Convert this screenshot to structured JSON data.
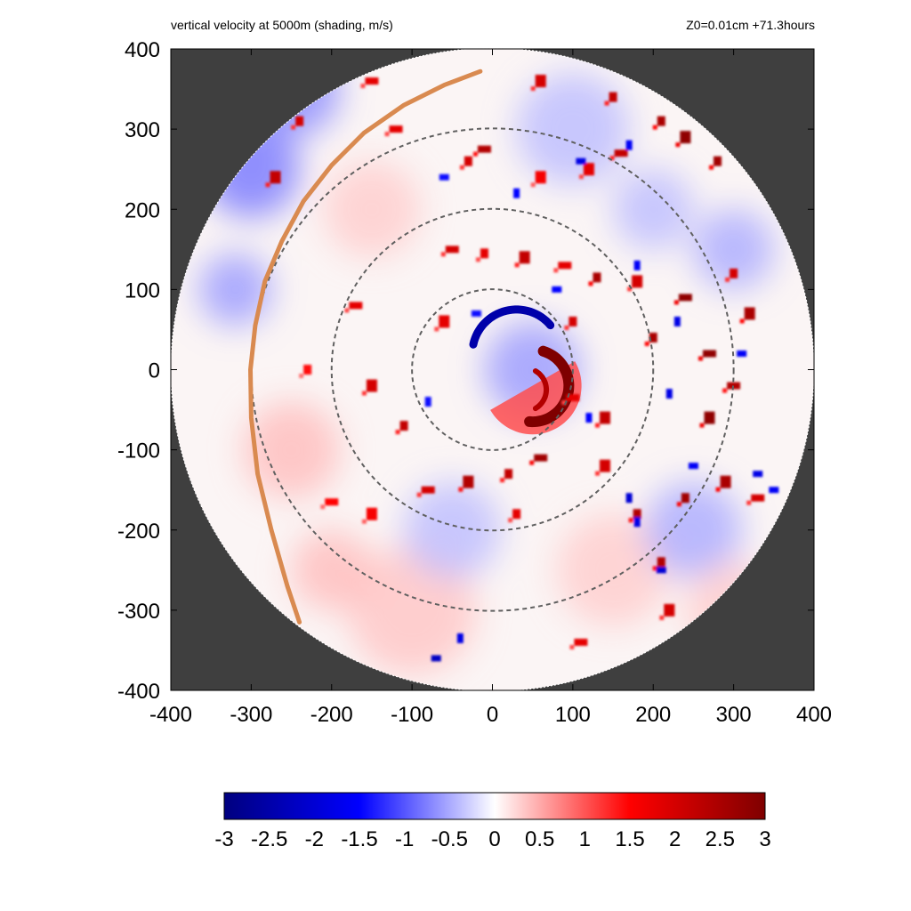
{
  "chart_data": {
    "type": "heatmap",
    "title": "vertical velocity at 5000m (shading, m/s)",
    "subtitle": "Z0=0.01cm  +71.3hours",
    "xlabel": "",
    "ylabel": "",
    "xlim": [
      -400,
      400
    ],
    "ylim": [
      -400,
      400
    ],
    "x_ticks": [
      "-400",
      "-300",
      "-200",
      "-100",
      "0",
      "100",
      "200",
      "300",
      "400"
    ],
    "y_ticks": [
      "400",
      "300",
      "200",
      "100",
      "0",
      "-100",
      "-200",
      "-300",
      "-400"
    ],
    "domain_radius": 400,
    "range_rings": [
      100,
      200,
      300
    ],
    "colorbar": {
      "range": [
        -3,
        3
      ],
      "ticks": [
        "-3",
        "-2.5",
        "-2",
        "-1.5",
        "-1",
        "-0.5",
        "0",
        "0.5",
        "1",
        "1.5",
        "2",
        "2.5",
        "3"
      ],
      "colormap": [
        "#00007f",
        "#0000ff",
        "#ffffff",
        "#ff0000",
        "#7f0000"
      ]
    },
    "features": {
      "eyewall_updraft_arc": {
        "center": [
          50,
          -20
        ],
        "radius": 45,
        "value": 3
      },
      "inner_downdraft_arc": {
        "center": [
          30,
          20
        ],
        "radius": 55,
        "value": -2.5
      },
      "updraft_cells": [
        [
          210,
          310,
          2.5
        ],
        [
          240,
          290,
          2.8
        ],
        [
          160,
          270,
          2.2
        ],
        [
          280,
          260,
          2.6
        ],
        [
          120,
          250,
          1.8
        ],
        [
          -10,
          275,
          2.4
        ],
        [
          -30,
          260,
          2.0
        ],
        [
          60,
          240,
          1.6
        ],
        [
          -150,
          360,
          1.8
        ],
        [
          -240,
          310,
          2.0
        ],
        [
          -270,
          240,
          2.2
        ],
        [
          -50,
          150,
          2.0
        ],
        [
          -10,
          145,
          1.8
        ],
        [
          40,
          140,
          2.2
        ],
        [
          90,
          130,
          1.8
        ],
        [
          130,
          115,
          2.5
        ],
        [
          180,
          110,
          2.0
        ],
        [
          240,
          90,
          2.8
        ],
        [
          300,
          120,
          2.0
        ],
        [
          320,
          70,
          2.5
        ],
        [
          270,
          20,
          2.8
        ],
        [
          200,
          40,
          2.5
        ],
        [
          270,
          -60,
          2.8
        ],
        [
          300,
          -20,
          2.4
        ],
        [
          240,
          -160,
          2.6
        ],
        [
          290,
          -140,
          2.5
        ],
        [
          330,
          -160,
          2.0
        ],
        [
          180,
          -180,
          2.4
        ],
        [
          140,
          -120,
          2.0
        ],
        [
          60,
          -110,
          2.6
        ],
        [
          20,
          -130,
          2.2
        ],
        [
          -30,
          -140,
          2.4
        ],
        [
          -80,
          -150,
          2.0
        ],
        [
          30,
          -180,
          1.8
        ],
        [
          -150,
          -180,
          1.6
        ],
        [
          -200,
          -165,
          1.5
        ],
        [
          -110,
          -70,
          2.2
        ],
        [
          -150,
          -20,
          2.0
        ],
        [
          -170,
          80,
          1.8
        ],
        [
          -230,
          0,
          1.4
        ],
        [
          140,
          -60,
          2.2
        ],
        [
          100,
          -35,
          1.8
        ],
        [
          210,
          -240,
          2.4
        ],
        [
          220,
          -300,
          2.0
        ],
        [
          110,
          -340,
          1.8
        ],
        [
          150,
          340,
          2.2
        ],
        [
          60,
          360,
          2.0
        ],
        [
          -120,
          300,
          1.8
        ],
        [
          100,
          60,
          2.0
        ],
        [
          -60,
          60,
          1.8
        ]
      ],
      "downdraft_cells": [
        [
          170,
          280,
          -1.6
        ],
        [
          110,
          260,
          -1.8
        ],
        [
          30,
          220,
          -1.5
        ],
        [
          -60,
          240,
          -1.4
        ],
        [
          180,
          130,
          -1.6
        ],
        [
          80,
          100,
          -1.5
        ],
        [
          230,
          60,
          -1.8
        ],
        [
          310,
          20,
          -1.6
        ],
        [
          220,
          -30,
          -1.8
        ],
        [
          250,
          -120,
          -1.6
        ],
        [
          170,
          -160,
          -2.0
        ],
        [
          330,
          -130,
          -1.8
        ],
        [
          120,
          -60,
          -1.5
        ],
        [
          -70,
          -360,
          -2.2
        ],
        [
          -40,
          -335,
          -1.8
        ],
        [
          210,
          -250,
          -2.0
        ],
        [
          180,
          -190,
          -1.8
        ],
        [
          -20,
          70,
          -1.4
        ],
        [
          -80,
          -40,
          -1.4
        ],
        [
          350,
          -150,
          -1.6
        ]
      ],
      "trajectory": [
        [
          -15,
          372
        ],
        [
          -60,
          355
        ],
        [
          -110,
          330
        ],
        [
          -160,
          295
        ],
        [
          -200,
          255
        ],
        [
          -235,
          210
        ],
        [
          -262,
          160
        ],
        [
          -283,
          110
        ],
        [
          -295,
          55
        ],
        [
          -301,
          0
        ],
        [
          -300,
          -60
        ],
        [
          -292,
          -130
        ],
        [
          -275,
          -200
        ],
        [
          -255,
          -270
        ],
        [
          -240,
          -315
        ]
      ]
    }
  },
  "colors": {
    "background": "#ffffff",
    "outside_domain": "#3f3f3f",
    "trajectory": "#d98a50",
    "range_ring": "#606060"
  }
}
